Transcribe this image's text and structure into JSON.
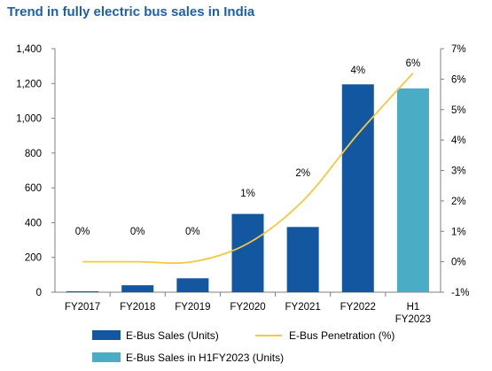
{
  "chart_data": {
    "type": "bar",
    "title": "Trend in fully electric bus sales in India",
    "categories": [
      [
        "FY2017"
      ],
      [
        "FY2018"
      ],
      [
        "FY2019"
      ],
      [
        "FY2020"
      ],
      [
        "FY2021"
      ],
      [
        "FY2022"
      ],
      [
        "H1",
        "FY2023"
      ]
    ],
    "y_ticks": [
      "0",
      "200",
      "400",
      "600",
      "800",
      "1,000",
      "1,200",
      "1,400"
    ],
    "y2_ticks": [
      "-1%",
      "0%",
      "1%",
      "2%",
      "3%",
      "4%",
      "5%",
      "6%",
      "7%"
    ],
    "ylim": [
      0,
      1400
    ],
    "y2lim": [
      -1,
      7
    ],
    "series": [
      {
        "name": "E-Bus Sales (Units)",
        "kind": "bar",
        "color": "#1257a0",
        "values": [
          5,
          40,
          80,
          450,
          375,
          1195,
          null
        ]
      },
      {
        "name": "E-Bus Sales in H1FY2023 (Units)",
        "kind": "bar",
        "color": "#4bacc6",
        "values": [
          null,
          null,
          null,
          null,
          null,
          null,
          1172
        ]
      },
      {
        "name": "E-Bus Penetration (%)",
        "kind": "line",
        "axis": "right",
        "color": "#f5c842",
        "values": [
          0,
          0,
          0,
          0.6,
          2.0,
          4.2,
          6.2
        ]
      }
    ],
    "data_labels": [
      "0%",
      "0%",
      "0%",
      "1%",
      "2%",
      "4%",
      "6%"
    ],
    "legend_position": "bottom",
    "grid": false
  }
}
